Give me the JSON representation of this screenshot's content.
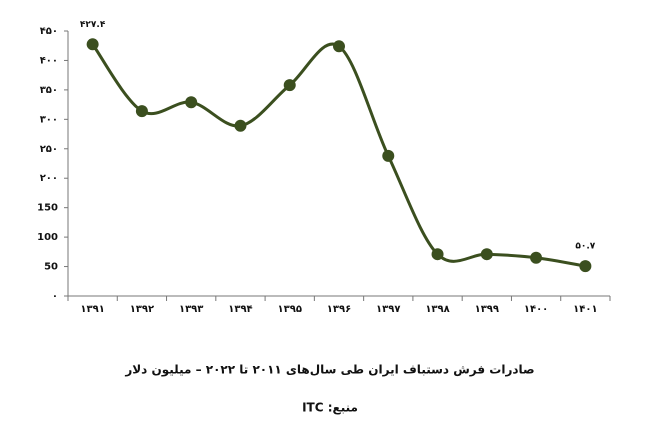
{
  "chart_data": {
    "type": "line",
    "title": "صادرات فرش دستباف ایران طی سال‌های ۲۰۱۱ تا ۲۰۲۲ – میلیون دلار",
    "source": "منبع: ITC",
    "categories": [
      "۱۳۹۱",
      "۱۳۹۲",
      "۱۳۹۳",
      "۱۳۹۴",
      "۱۳۹۵",
      "۱۳۹۶",
      "۱۳۹۷",
      "۱۳۹۸",
      "۱۳۹۹",
      "۱۴۰۰",
      "۱۴۰۱"
    ],
    "values": [
      427.4,
      314,
      329,
      289,
      358,
      424,
      238,
      71,
      71,
      65,
      50.7
    ],
    "value_labels": [
      "۴۲۷.۴",
      null,
      null,
      null,
      null,
      null,
      null,
      null,
      null,
      null,
      "۵۰.۷"
    ],
    "color": "#3b4f1f",
    "ylim": [
      0,
      450
    ],
    "yticks": [
      {
        "value": 0,
        "label": "۰"
      },
      50,
      100,
      150,
      {
        "value": 200,
        "label": "۲۰۰"
      },
      {
        "value": 250,
        "label": "۲۵۰"
      },
      {
        "value": 300,
        "label": "۳۰۰"
      },
      {
        "value": 350,
        "label": "۳۵۰"
      },
      {
        "value": 400,
        "label": "۴۰۰"
      },
      {
        "value": 450,
        "label": "۴۵۰"
      }
    ]
  }
}
